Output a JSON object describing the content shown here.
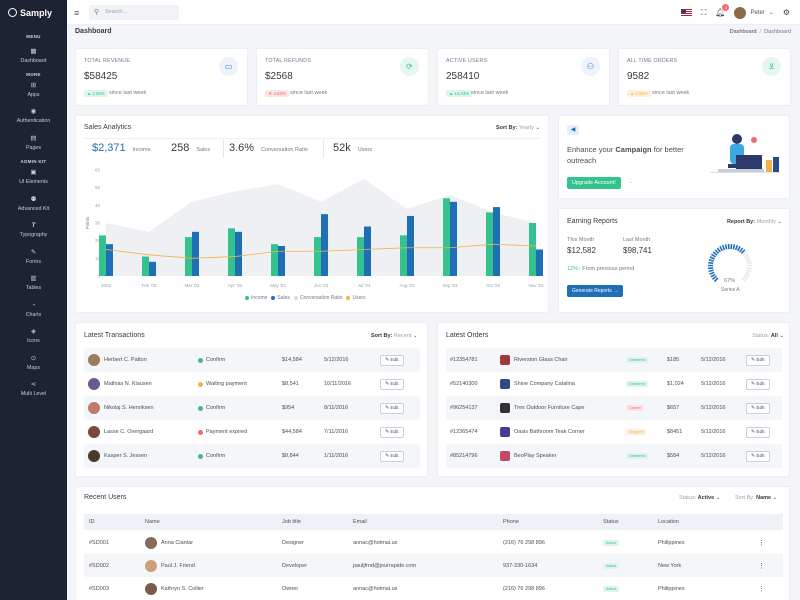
{
  "brand": {
    "name": "Samply"
  },
  "sidebar": {
    "section_menu": "MENU",
    "section_more": "MORE",
    "section_adminkit": "ADMIN KIT",
    "items": [
      {
        "label": "Dashboard",
        "icon": "grid-icon",
        "glyph": "▦"
      },
      {
        "label": "Apps",
        "icon": "apps-icon",
        "glyph": "⊞"
      },
      {
        "label": "Authentication",
        "icon": "user-circle-icon",
        "glyph": "◉"
      },
      {
        "label": "Pages",
        "icon": "file-icon",
        "glyph": "▤"
      },
      {
        "label": "UI Elements",
        "icon": "briefcase-icon",
        "glyph": "▣"
      },
      {
        "label": "Advanced Kit",
        "icon": "gift-icon",
        "glyph": "⚉"
      },
      {
        "label": "Typography",
        "icon": "type-icon",
        "glyph": "T"
      },
      {
        "label": "Forms",
        "icon": "pen-icon",
        "glyph": "✎"
      },
      {
        "label": "Tables",
        "icon": "table-icon",
        "glyph": "▥"
      },
      {
        "label": "Charts",
        "icon": "pie-chart-icon",
        "glyph": "◔"
      },
      {
        "label": "Icons",
        "icon": "layers-icon",
        "glyph": "◈"
      },
      {
        "label": "Maps",
        "icon": "map-icon",
        "glyph": "⊙"
      },
      {
        "label": "Multi Level",
        "icon": "share-icon",
        "glyph": "⋖"
      }
    ]
  },
  "topbar": {
    "search_placeholder": "Search...",
    "username": "Peter",
    "notif_count": "3"
  },
  "page": {
    "title": "Dashboard",
    "breadcrumb": [
      "Dashboard",
      "Dashboard"
    ]
  },
  "stats": [
    {
      "label": "TOTAL REVENUE",
      "value": "$58425",
      "badge": "2.65%",
      "trend": "up",
      "sub": "since last week",
      "icon": "money-icon",
      "glyph": "▭",
      "color": "#1f6fb6"
    },
    {
      "label": "TOTAL REFUNDS",
      "value": "$2568",
      "badge": "4.93%",
      "trend": "down",
      "sub": "since last week",
      "icon": "refresh-icon",
      "glyph": "⟳",
      "color": "#34c38f"
    },
    {
      "label": "ACTIVE USERS",
      "value": "258410",
      "badge": "14.33%",
      "trend": "up",
      "sub": "since last week",
      "icon": "users-icon",
      "glyph": "⚇",
      "color": "#1f6fb6"
    },
    {
      "label": "ALL TIME ORDERS",
      "value": "9582",
      "badge": "0.55%",
      "trend": "warn",
      "sub": "since last week",
      "icon": "cart-icon",
      "glyph": "⊻",
      "color": "#34c38f"
    }
  ],
  "sales": {
    "title": "Sales Analytics",
    "sort_label": "Sort By:",
    "sort_value": "Yearly",
    "kpis": [
      {
        "value": "$2,371",
        "label": "Income"
      },
      {
        "value": "258",
        "label": "Sales"
      },
      {
        "value": "3.6%",
        "label": "Conversation Ratio"
      },
      {
        "value": "52k",
        "label": "Users"
      }
    ]
  },
  "chart_data": {
    "type": "bar",
    "categories": [
      "2003",
      "Feb '03",
      "Mar '03",
      "Apr '03",
      "May '03",
      "Jun '03",
      "Jul '03",
      "Aug '03",
      "Sep '03",
      "Oct '03",
      "Nov '03"
    ],
    "ylim": [
      0,
      60
    ],
    "yticks": [
      "0",
      "10",
      "20",
      "30",
      "40",
      "50",
      "60"
    ],
    "ylabel": "Points",
    "series": [
      {
        "name": "Income",
        "type": "bar",
        "color": "#34c38f",
        "values": [
          23,
          11,
          22,
          27,
          18,
          22,
          22,
          23,
          44,
          36,
          30
        ]
      },
      {
        "name": "Sales",
        "type": "bar",
        "color": "#1f6fb6",
        "values": [
          18,
          8,
          25,
          25,
          17,
          35,
          28,
          34,
          42,
          39,
          15
        ]
      },
      {
        "name": "Conversation Ratio",
        "type": "area",
        "color": "#eef0f4",
        "values": [
          30,
          25,
          42,
          48,
          52,
          42,
          55,
          38,
          46,
          36,
          30
        ]
      },
      {
        "name": "Users",
        "type": "line",
        "color": "#f1b44c",
        "values": [
          15,
          12,
          10,
          11,
          14,
          14,
          15,
          16,
          16,
          18,
          17
        ]
      }
    ]
  },
  "campaign": {
    "text_pre": "Enhance your ",
    "text_bold": "Campaign",
    "text_post": " for better outreach",
    "arrow": "→",
    "button": "Upgrade Account!"
  },
  "earning": {
    "title": "Earning Reports",
    "sort_label": "Report By:",
    "sort_value": "Monthly",
    "this_month_label": "This Month",
    "this_month_value": "$12,582",
    "last_month_label": "Last Month",
    "last_month_value": "$98,741",
    "growth": "12%",
    "growth_arrow": "↑",
    "growth_label": "From previous period",
    "button": "Generate Reports",
    "button_arrow": "→",
    "gauge_value": "67%",
    "gauge_label": "Series A",
    "gauge_fraction": 0.67
  },
  "transactions": {
    "title": "Latest Transactions",
    "sort_label": "Sort By:",
    "sort_value": "Recent",
    "rows": [
      {
        "name": "Herbert C. Patton",
        "status": "Confirm",
        "status_color": "#34c38f",
        "amount": "$14,584",
        "date": "5/12/2016",
        "edit": "Edit",
        "avatar_color": "#9a7b5a"
      },
      {
        "name": "Mathias N. Klausen",
        "status": "Waiting payment",
        "status_color": "#f1b44c",
        "amount": "$8,541",
        "date": "10/11/2016",
        "edit": "Edit",
        "avatar_color": "#6b5a8a"
      },
      {
        "name": "Nikolaj S. Henriksen",
        "status": "Confirm",
        "status_color": "#34c38f",
        "amount": "$954",
        "date": "8/11/2016",
        "edit": "Edit",
        "avatar_color": "#c07a6a"
      },
      {
        "name": "Lasse C. Overgaard",
        "status": "Payment expired",
        "status_color": "#f46a6a",
        "amount": "$44,584",
        "date": "7/11/2016",
        "edit": "Edit",
        "avatar_color": "#7a4a3a"
      },
      {
        "name": "Kasper S. Jessen",
        "status": "Confirm",
        "status_color": "#34c38f",
        "amount": "$8,844",
        "date": "1/11/2016",
        "edit": "Edit",
        "avatar_color": "#4a3a2a"
      }
    ]
  },
  "orders": {
    "title": "Latest Orders",
    "status_label": "Status:",
    "status_value": "All",
    "rows": [
      {
        "id": "#12354781",
        "product": "Riverston Glass Chair",
        "badge": "Delivered",
        "badge_type": "green",
        "price": "$185",
        "date": "5/12/2016",
        "edit": "Edit",
        "icon_color": "#a33a3a"
      },
      {
        "id": "#52140300",
        "product": "Shine Company Catalina",
        "badge": "Delivered",
        "badge_type": "green",
        "price": "$1,024",
        "date": "5/12/2016",
        "edit": "Edit",
        "icon_color": "#2a4a8a"
      },
      {
        "id": "#96254137",
        "product": "Trex Outdoor Furniture Cape",
        "badge": "Cancel",
        "badge_type": "red",
        "price": "$657",
        "date": "5/12/2016",
        "edit": "Edit",
        "icon_color": "#333333"
      },
      {
        "id": "#12365474",
        "product": "Oasis Bathroom Teak Corner",
        "badge": "Shipped",
        "badge_type": "orange",
        "price": "$8451",
        "date": "5/12/2016",
        "edit": "Edit",
        "icon_color": "#4a3a9a"
      },
      {
        "id": "#85214796",
        "product": "BeoPlay Speaker",
        "badge": "Delivered",
        "badge_type": "green",
        "price": "$584",
        "date": "5/12/2016",
        "edit": "Edit",
        "icon_color": "#c04a6a"
      }
    ]
  },
  "users": {
    "title": "Recent Users",
    "status_label": "Status:",
    "status_value": "Active",
    "sort_label": "Sort By:",
    "sort_value": "Name",
    "columns": [
      "ID",
      "Name",
      "Job title",
      "Email",
      "Phone",
      "Status",
      "Location"
    ],
    "rows": [
      {
        "id": "#SD001",
        "name": "Anna Ciantar",
        "job": "Designer",
        "email": "annac@hotmai.us",
        "phone": "(216) 76 298 896",
        "status": "Active",
        "location": "Philippines",
        "avatar_color": "#8a6a5a"
      },
      {
        "id": "#SD002",
        "name": "Paul J. Friend",
        "job": "Developer",
        "email": "pauljfrnd@jourrapide.com",
        "phone": "937-330-1634",
        "status": "Active",
        "location": "New York",
        "avatar_color": "#caa07a"
      },
      {
        "id": "#SD003",
        "name": "Kathryn S. Collier",
        "job": "Owner",
        "email": "annac@hotmai.us",
        "phone": "(216) 76 298 896",
        "status": "Active",
        "location": "Philippines",
        "avatar_color": "#7a5a4a"
      }
    ]
  }
}
